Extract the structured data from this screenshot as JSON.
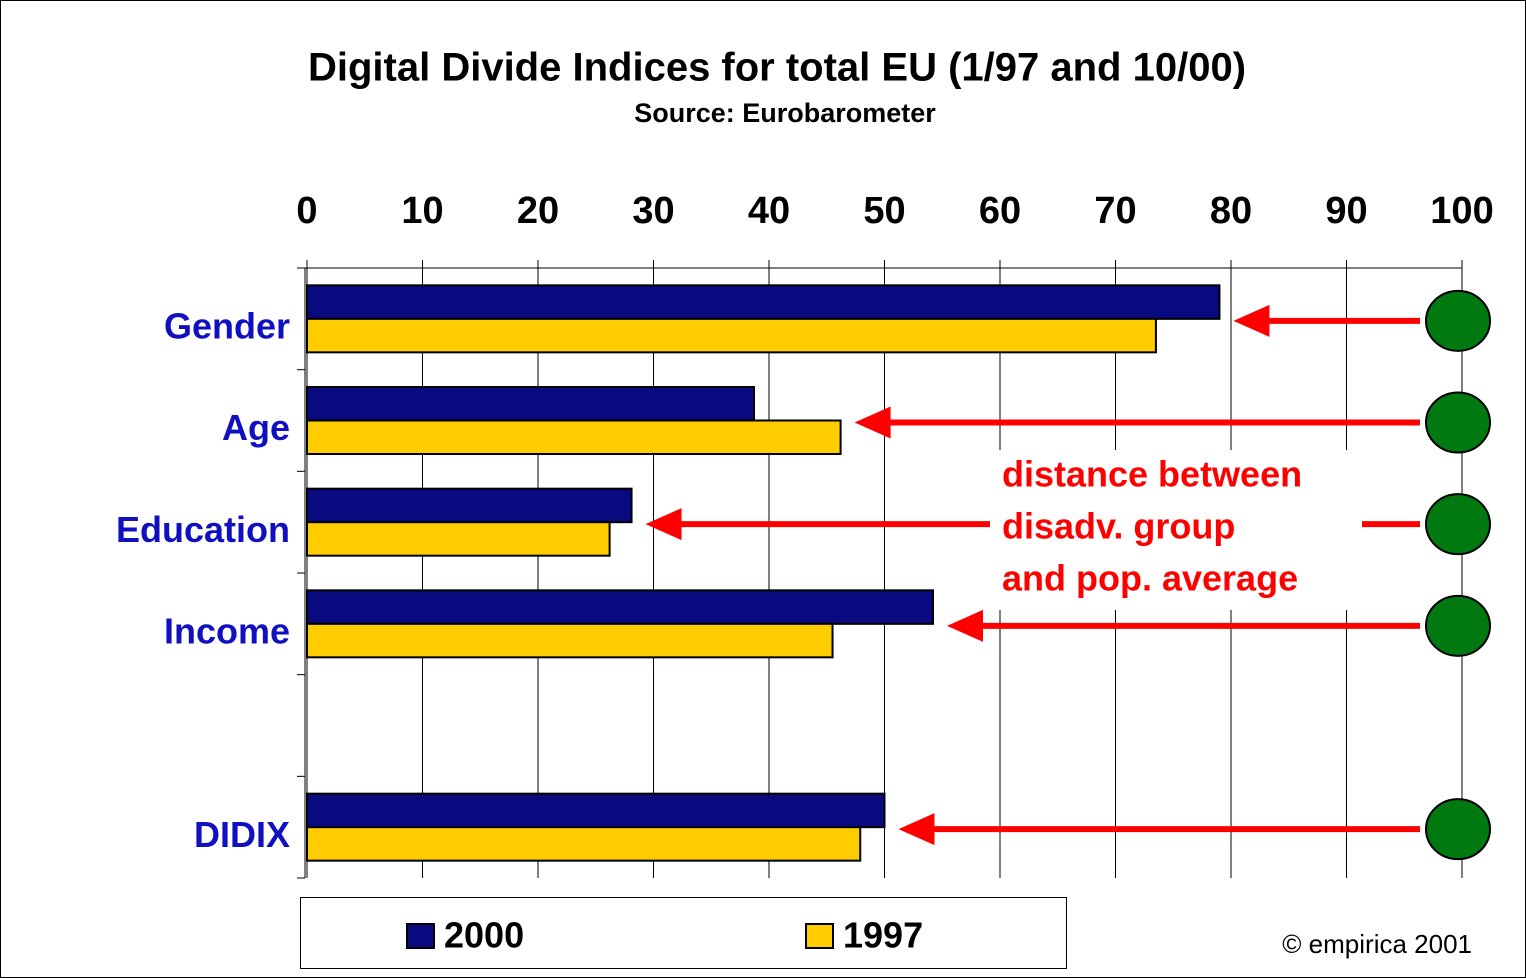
{
  "chart_data": {
    "type": "bar",
    "orientation": "horizontal",
    "title": "Digital Divide Indices for total EU (1/97 and 10/00)",
    "subtitle": "Source: Eurobarometer",
    "categories": [
      "Gender",
      "Age",
      "Education",
      "Income",
      null,
      "DIDIX"
    ],
    "series": [
      {
        "name": "2000",
        "color": "#0a0a80",
        "values": [
          79,
          38.7,
          28.1,
          54.2,
          null,
          50
        ]
      },
      {
        "name": "1997",
        "color": "#ffcc00",
        "values": [
          73.5,
          46.2,
          26.2,
          45.5,
          null,
          47.9
        ]
      }
    ],
    "xlim": [
      0,
      100
    ],
    "xticks": [
      0,
      10,
      20,
      30,
      40,
      50,
      60,
      70,
      80,
      90,
      100
    ],
    "grid": true,
    "annotation": [
      "distance between",
      "disadv. group",
      "and pop. average"
    ],
    "copyright": "© empirica 2001"
  }
}
